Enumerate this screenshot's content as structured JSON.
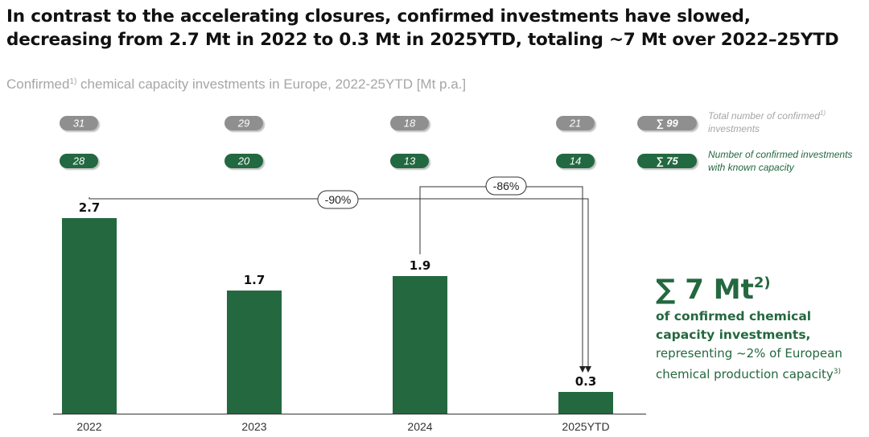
{
  "title": {
    "line1": "In contrast to the accelerating closures, confirmed investments have slowed,",
    "line2": "decreasing from 2.7 Mt in 2022 to 0.3 Mt in 2025YTD, totaling ~7 Mt over 2022–25YTD"
  },
  "subtitle": {
    "text_a": "Confirmed",
    "sup": "1)",
    "text_b": " chemical capacity investments in Europe, 2022-25YTD [Mt p.a.]"
  },
  "colors": {
    "bar": "#24683f",
    "pill_gray": "#8f8f8f",
    "pill_green": "#24683f",
    "gray_text": "#a6a6a6",
    "green_text": "#24683f"
  },
  "chart_data": {
    "type": "bar",
    "title": "Confirmed chemical capacity investments in Europe, 2022-25YTD [Mt p.a.]",
    "categories": [
      "2022",
      "2023",
      "2024",
      "2025YTD"
    ],
    "values": [
      2.7,
      1.7,
      1.9,
      0.3
    ],
    "value_labels": [
      "2.7",
      "1.7",
      "1.9",
      "0.3"
    ],
    "ylim": [
      0,
      3.0
    ],
    "grid": false,
    "xlabel": "",
    "ylabel": "Mt p.a.",
    "total_investments": {
      "values": [
        "31",
        "29",
        "18",
        "21"
      ],
      "sum": "∑ 99",
      "label_line1": "Total number of confirmed",
      "label_sup": "1)",
      "label_line2": "investments"
    },
    "known_capacity": {
      "values": [
        "28",
        "20",
        "13",
        "14"
      ],
      "sum": "∑ 75",
      "label_line1": "Number of confirmed investments",
      "label_line2": "with known capacity"
    },
    "annotations": [
      {
        "from": "2022",
        "to": "2025YTD",
        "label": "-90%"
      },
      {
        "from": "2024",
        "to": "2025YTD",
        "label": "-86%"
      }
    ]
  },
  "summary": {
    "big_text": "∑ 7 Mt",
    "big_sup": "2)",
    "bold_line1": "of confirmed chemical",
    "bold_line2": "capacity investments,",
    "line3": "representing ~2% of European",
    "line4": "chemical production capacity",
    "line4_sup": "3)"
  }
}
